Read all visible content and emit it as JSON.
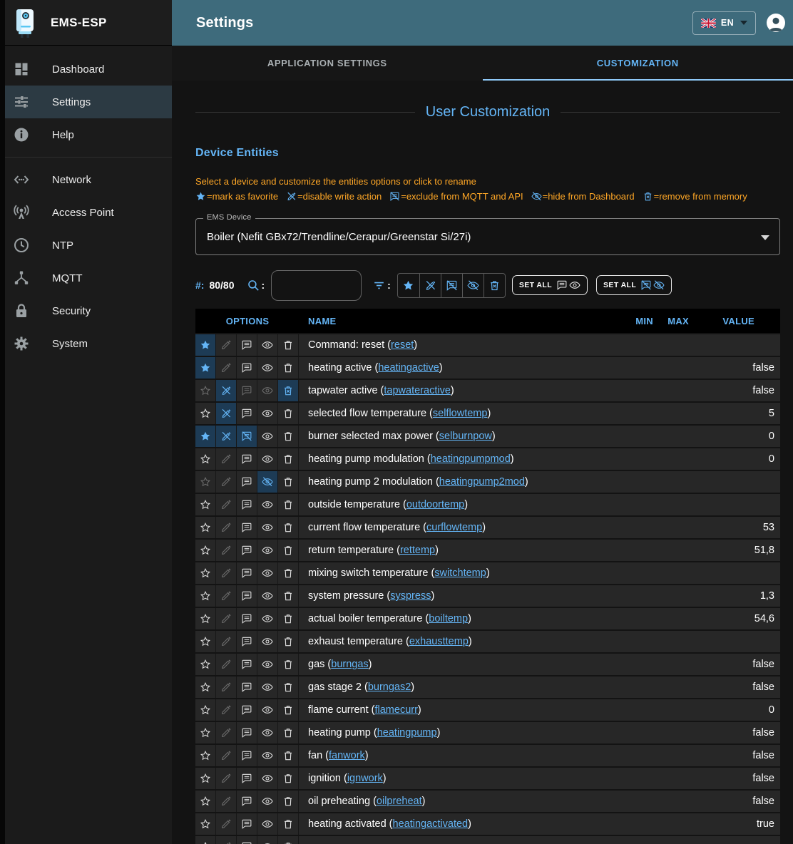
{
  "app": {
    "name": "EMS-ESP"
  },
  "appbar": {
    "title": "Settings",
    "language": "EN"
  },
  "sidebar": {
    "items": [
      {
        "label": "Dashboard",
        "icon": "dashboard-icon",
        "selected": false,
        "divider_after": false
      },
      {
        "label": "Settings",
        "icon": "tune-icon",
        "selected": true,
        "divider_after": false
      },
      {
        "label": "Help",
        "icon": "info-icon",
        "selected": false,
        "divider_after": true
      },
      {
        "label": "Network",
        "icon": "network-icon",
        "selected": false,
        "divider_after": false
      },
      {
        "label": "Access Point",
        "icon": "access-point-icon",
        "selected": false,
        "divider_after": false
      },
      {
        "label": "NTP",
        "icon": "clock-icon",
        "selected": false,
        "divider_after": false
      },
      {
        "label": "MQTT",
        "icon": "hub-icon",
        "selected": false,
        "divider_after": false
      },
      {
        "label": "Security",
        "icon": "lock-icon",
        "selected": false,
        "divider_after": false
      },
      {
        "label": "System",
        "icon": "gear-icon",
        "selected": false,
        "divider_after": false
      }
    ]
  },
  "tabs": [
    {
      "label": "APPLICATION SETTINGS",
      "active": false
    },
    {
      "label": "CUSTOMIZATION",
      "active": true
    }
  ],
  "page": {
    "title": "User Customization",
    "section": "Device Entities",
    "hint": "Select a device and customize the entities options or click to rename",
    "legend": [
      {
        "icon": "star-icon",
        "text": "=mark as favorite"
      },
      {
        "icon": "edit-off-icon",
        "text": "=disable write action"
      },
      {
        "icon": "chat-off-icon",
        "text": "=exclude from MQTT and API"
      },
      {
        "icon": "eye-off-icon",
        "text": "=hide from Dashboard"
      },
      {
        "icon": "delete-forever-icon",
        "text": "=remove from memory"
      }
    ],
    "device_select": {
      "label": "EMS Device",
      "value": "Boiler (Nefit GBx72/Trendline/Cerapur/Greenstar Si/27i)"
    },
    "toolbar": {
      "count_label": "#:",
      "count": "80/80",
      "search_colon": ":",
      "filter_colon": ":",
      "search_value": "",
      "filter_icons": [
        "star-icon",
        "edit-off-icon",
        "chat-off-icon",
        "eye-off-icon",
        "delete-forever-icon"
      ],
      "set_all_show": {
        "label": "SET ALL",
        "icons": [
          "chat-icon",
          "eye-icon"
        ]
      },
      "set_all_hide": {
        "label": "SET ALL",
        "icons": [
          "chat-off-icon",
          "eye-off-icon"
        ]
      }
    },
    "table": {
      "headers": [
        "OPTIONS",
        "NAME",
        "MIN",
        "MAX",
        "VALUE"
      ],
      "rows": [
        {
          "label": "Command: reset",
          "code": "reset",
          "min": "",
          "max": "",
          "value": "",
          "opts": {
            "favorite": "active",
            "write": "dim",
            "mqtt": "normal",
            "dashboard": "normal",
            "memory": "normal"
          }
        },
        {
          "label": "heating active",
          "code": "heatingactive",
          "min": "",
          "max": "",
          "value": "false",
          "opts": {
            "favorite": "active",
            "write": "dim",
            "mqtt": "normal",
            "dashboard": "normal",
            "memory": "normal"
          }
        },
        {
          "label": "tapwater active",
          "code": "tapwateractive",
          "min": "",
          "max": "",
          "value": "false",
          "opts": {
            "favorite": "dim",
            "write": "active",
            "mqtt": "dim",
            "dashboard": "dim",
            "memory": "active"
          }
        },
        {
          "label": "selected flow temperature",
          "code": "selflowtemp",
          "min": "",
          "max": "",
          "value": "5",
          "opts": {
            "favorite": "normal",
            "write": "active",
            "mqtt": "normal",
            "dashboard": "normal",
            "memory": "normal"
          }
        },
        {
          "label": "burner selected max power",
          "code": "selburnpow",
          "min": "",
          "max": "",
          "value": "0",
          "opts": {
            "favorite": "active",
            "write": "active",
            "mqtt": "active",
            "dashboard": "normal",
            "memory": "normal"
          }
        },
        {
          "label": "heating pump modulation",
          "code": "heatingpumpmod",
          "min": "",
          "max": "",
          "value": "0",
          "opts": {
            "favorite": "normal",
            "write": "dim",
            "mqtt": "normal",
            "dashboard": "normal",
            "memory": "normal"
          }
        },
        {
          "label": "heating pump 2 modulation",
          "code": "heatingpump2mod",
          "min": "",
          "max": "",
          "value": "",
          "opts": {
            "favorite": "dim",
            "write": "dim",
            "mqtt": "normal",
            "dashboard": "active",
            "memory": "normal"
          }
        },
        {
          "label": "outside temperature",
          "code": "outdoortemp",
          "min": "",
          "max": "",
          "value": "",
          "opts": {
            "favorite": "normal",
            "write": "dim",
            "mqtt": "normal",
            "dashboard": "normal",
            "memory": "normal"
          }
        },
        {
          "label": "current flow temperature",
          "code": "curflowtemp",
          "min": "",
          "max": "",
          "value": "53",
          "opts": {
            "favorite": "normal",
            "write": "dim",
            "mqtt": "normal",
            "dashboard": "normal",
            "memory": "normal"
          }
        },
        {
          "label": "return temperature",
          "code": "rettemp",
          "min": "",
          "max": "",
          "value": "51,8",
          "opts": {
            "favorite": "normal",
            "write": "dim",
            "mqtt": "normal",
            "dashboard": "normal",
            "memory": "normal"
          }
        },
        {
          "label": "mixing switch temperature",
          "code": "switchtemp",
          "min": "",
          "max": "",
          "value": "",
          "opts": {
            "favorite": "normal",
            "write": "dim",
            "mqtt": "normal",
            "dashboard": "normal",
            "memory": "normal"
          }
        },
        {
          "label": "system pressure",
          "code": "syspress",
          "min": "",
          "max": "",
          "value": "1,3",
          "opts": {
            "favorite": "normal",
            "write": "dim",
            "mqtt": "normal",
            "dashboard": "normal",
            "memory": "normal"
          }
        },
        {
          "label": "actual boiler temperature",
          "code": "boiltemp",
          "min": "",
          "max": "",
          "value": "54,6",
          "opts": {
            "favorite": "normal",
            "write": "dim",
            "mqtt": "normal",
            "dashboard": "normal",
            "memory": "normal"
          }
        },
        {
          "label": "exhaust temperature",
          "code": "exhausttemp",
          "min": "",
          "max": "",
          "value": "",
          "opts": {
            "favorite": "normal",
            "write": "dim",
            "mqtt": "normal",
            "dashboard": "normal",
            "memory": "normal"
          }
        },
        {
          "label": "gas",
          "code": "burngas",
          "min": "",
          "max": "",
          "value": "false",
          "opts": {
            "favorite": "normal",
            "write": "dim",
            "mqtt": "normal",
            "dashboard": "normal",
            "memory": "normal"
          }
        },
        {
          "label": "gas stage 2",
          "code": "burngas2",
          "min": "",
          "max": "",
          "value": "false",
          "opts": {
            "favorite": "normal",
            "write": "dim",
            "mqtt": "normal",
            "dashboard": "normal",
            "memory": "normal"
          }
        },
        {
          "label": "flame current",
          "code": "flamecurr",
          "min": "",
          "max": "",
          "value": "0",
          "opts": {
            "favorite": "normal",
            "write": "dim",
            "mqtt": "normal",
            "dashboard": "normal",
            "memory": "normal"
          }
        },
        {
          "label": "heating pump",
          "code": "heatingpump",
          "min": "",
          "max": "",
          "value": "false",
          "opts": {
            "favorite": "normal",
            "write": "dim",
            "mqtt": "normal",
            "dashboard": "normal",
            "memory": "normal"
          }
        },
        {
          "label": "fan",
          "code": "fanwork",
          "min": "",
          "max": "",
          "value": "false",
          "opts": {
            "favorite": "normal",
            "write": "dim",
            "mqtt": "normal",
            "dashboard": "normal",
            "memory": "normal"
          }
        },
        {
          "label": "ignition",
          "code": "ignwork",
          "min": "",
          "max": "",
          "value": "false",
          "opts": {
            "favorite": "normal",
            "write": "dim",
            "mqtt": "normal",
            "dashboard": "normal",
            "memory": "normal"
          }
        },
        {
          "label": "oil preheating",
          "code": "oilpreheat",
          "min": "",
          "max": "",
          "value": "false",
          "opts": {
            "favorite": "normal",
            "write": "dim",
            "mqtt": "normal",
            "dashboard": "normal",
            "memory": "normal"
          }
        },
        {
          "label": "heating activated",
          "code": "heatingactivated",
          "min": "",
          "max": "",
          "value": "true",
          "opts": {
            "favorite": "normal",
            "write": "dim",
            "mqtt": "normal",
            "dashboard": "normal",
            "memory": "normal"
          }
        },
        {
          "label": "",
          "code": "",
          "min": "",
          "max": "",
          "value": "",
          "opts": {
            "favorite": "normal",
            "write": "dim",
            "mqtt": "normal",
            "dashboard": "normal",
            "memory": "normal"
          }
        }
      ]
    }
  },
  "colors": {
    "accent_blue": "#64b5f6",
    "tab_underline": "#90caf9",
    "appbar_teal": "#3e6b7c",
    "hint_orange": "#ffa726",
    "option_active_bg": "#1d3b55",
    "row_bg": "#272727",
    "header_bg": "#000000"
  }
}
